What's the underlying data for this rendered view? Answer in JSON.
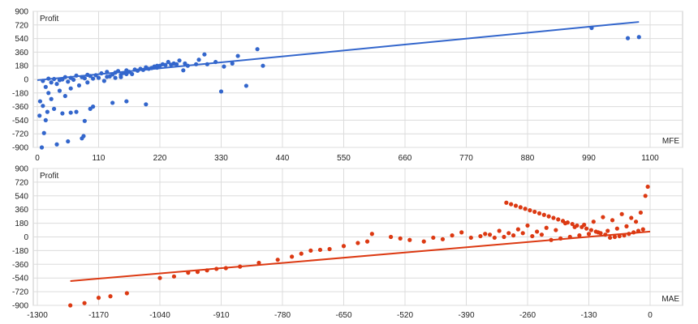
{
  "chart_data": [
    {
      "type": "scatter",
      "ylabel": "Profit",
      "xlabel": "MFE",
      "xlim": [
        0,
        1100
      ],
      "ylim": [
        -900,
        900
      ],
      "xticks": [
        0,
        110,
        220,
        330,
        440,
        550,
        660,
        770,
        880,
        990,
        1100
      ],
      "yticks": [
        900,
        720,
        540,
        360,
        180,
        0,
        -180,
        -360,
        -540,
        -720,
        -900
      ],
      "grid": true,
      "color": "#3366cc",
      "trendline": {
        "x": [
          0,
          1080
        ],
        "y": [
          -10,
          760
        ]
      },
      "points": [
        [
          995,
          680
        ],
        [
          1060,
          545
        ],
        [
          1080,
          560
        ],
        [
          405,
          180
        ],
        [
          395,
          400
        ],
        [
          375,
          -85
        ],
        [
          360,
          310
        ],
        [
          350,
          210
        ],
        [
          335,
          170
        ],
        [
          330,
          -160
        ],
        [
          320,
          230
        ],
        [
          305,
          200
        ],
        [
          300,
          330
        ],
        [
          290,
          260
        ],
        [
          285,
          200
        ],
        [
          270,
          180
        ],
        [
          262,
          120
        ],
        [
          255,
          250
        ],
        [
          245,
          210
        ],
        [
          235,
          230
        ],
        [
          225,
          200
        ],
        [
          215,
          180
        ],
        [
          205,
          150
        ],
        [
          195,
          -330
        ],
        [
          160,
          -290
        ],
        [
          135,
          -310
        ],
        [
          100,
          -360
        ],
        [
          95,
          -390
        ],
        [
          85,
          -550
        ],
        [
          83,
          -750
        ],
        [
          80,
          -780
        ],
        [
          70,
          -430
        ],
        [
          60,
          -440
        ],
        [
          55,
          -820
        ],
        [
          45,
          -450
        ],
        [
          35,
          -860
        ],
        [
          15,
          -540
        ],
        [
          12,
          -710
        ],
        [
          8,
          -900
        ],
        [
          4,
          -480
        ],
        [
          30,
          -390
        ],
        [
          18,
          -430
        ],
        [
          10,
          -350
        ],
        [
          5,
          -290
        ],
        [
          25,
          -260
        ],
        [
          50,
          -220
        ],
        [
          20,
          -180
        ],
        [
          40,
          -150
        ],
        [
          60,
          -120
        ],
        [
          15,
          -100
        ],
        [
          75,
          -80
        ],
        [
          35,
          -60
        ],
        [
          90,
          -40
        ],
        [
          55,
          -30
        ],
        [
          120,
          -20
        ],
        [
          110,
          20
        ],
        [
          130,
          40
        ],
        [
          150,
          60
        ],
        [
          170,
          70
        ],
        [
          140,
          90
        ],
        [
          100,
          10
        ],
        [
          80,
          30
        ],
        [
          60,
          20
        ],
        [
          40,
          -10
        ],
        [
          30,
          5
        ],
        [
          70,
          50
        ],
        [
          90,
          60
        ],
        [
          115,
          80
        ],
        [
          125,
          100
        ],
        [
          145,
          110
        ],
        [
          160,
          120
        ],
        [
          175,
          130
        ],
        [
          185,
          140
        ],
        [
          195,
          160
        ],
        [
          210,
          170
        ],
        [
          220,
          180
        ],
        [
          230,
          190
        ],
        [
          240,
          195
        ],
        [
          250,
          200
        ],
        [
          265,
          210
        ],
        [
          10,
          -20
        ],
        [
          20,
          10
        ],
        [
          25,
          -40
        ],
        [
          45,
          0
        ],
        [
          50,
          30
        ],
        [
          65,
          -5
        ],
        [
          85,
          15
        ],
        [
          95,
          45
        ],
        [
          105,
          55
        ],
        [
          125,
          35
        ],
        [
          135,
          65
        ],
        [
          155,
          85
        ],
        [
          165,
          100
        ],
        [
          180,
          115
        ],
        [
          190,
          125
        ],
        [
          200,
          140
        ],
        [
          215,
          155
        ],
        [
          160,
          70
        ],
        [
          150,
          30
        ],
        [
          140,
          20
        ]
      ]
    },
    {
      "type": "scatter",
      "ylabel": "Profit",
      "xlabel": "MAE",
      "xlim": [
        -1300,
        0
      ],
      "ylim": [
        -900,
        900
      ],
      "xticks": [
        -1300,
        -1170,
        -1040,
        -910,
        -780,
        -650,
        -520,
        -390,
        -260,
        -130,
        0
      ],
      "yticks": [
        900,
        720,
        540,
        360,
        180,
        0,
        -180,
        -360,
        -540,
        -720,
        -900
      ],
      "grid": true,
      "color": "#dc3912",
      "trendline": {
        "x": [
          -1230,
          0
        ],
        "y": [
          -580,
          70
        ]
      },
      "points": [
        [
          -1230,
          -900
        ],
        [
          -1200,
          -870
        ],
        [
          -1170,
          -800
        ],
        [
          -1145,
          -780
        ],
        [
          -1110,
          -740
        ],
        [
          -1040,
          -540
        ],
        [
          -1010,
          -520
        ],
        [
          -980,
          -470
        ],
        [
          -960,
          -460
        ],
        [
          -940,
          -440
        ],
        [
          -920,
          -420
        ],
        [
          -900,
          -410
        ],
        [
          -870,
          -390
        ],
        [
          -830,
          -340
        ],
        [
          -790,
          -300
        ],
        [
          -760,
          -260
        ],
        [
          -740,
          -220
        ],
        [
          -720,
          -180
        ],
        [
          -700,
          -170
        ],
        [
          -680,
          -160
        ],
        [
          -650,
          -120
        ],
        [
          -620,
          -80
        ],
        [
          -600,
          -60
        ],
        [
          -590,
          40
        ],
        [
          -550,
          0
        ],
        [
          -530,
          -20
        ],
        [
          -510,
          -40
        ],
        [
          -480,
          -60
        ],
        [
          -460,
          -10
        ],
        [
          -440,
          -30
        ],
        [
          -420,
          20
        ],
        [
          -400,
          60
        ],
        [
          -380,
          -10
        ],
        [
          -360,
          10
        ],
        [
          -340,
          30
        ],
        [
          -320,
          80
        ],
        [
          -300,
          50
        ],
        [
          -280,
          100
        ],
        [
          -260,
          150
        ],
        [
          -240,
          70
        ],
        [
          -220,
          120
        ],
        [
          -200,
          90
        ],
        [
          -180,
          180
        ],
        [
          -160,
          130
        ],
        [
          -140,
          160
        ],
        [
          -120,
          200
        ],
        [
          -100,
          260
        ],
        [
          -80,
          220
        ],
        [
          -60,
          300
        ],
        [
          -40,
          250
        ],
        [
          -20,
          320
        ],
        [
          -10,
          540
        ],
        [
          -5,
          660
        ],
        [
          -30,
          200
        ],
        [
          -50,
          140
        ],
        [
          -70,
          110
        ],
        [
          -90,
          80
        ],
        [
          -110,
          60
        ],
        [
          -130,
          40
        ],
        [
          -150,
          20
        ],
        [
          -170,
          0
        ],
        [
          -190,
          -20
        ],
        [
          -210,
          -40
        ],
        [
          -230,
          30
        ],
        [
          -250,
          10
        ],
        [
          -270,
          50
        ],
        [
          -290,
          20
        ],
        [
          -310,
          0
        ],
        [
          -330,
          -10
        ],
        [
          -350,
          40
        ],
        [
          -15,
          100
        ],
        [
          -25,
          80
        ],
        [
          -35,
          60
        ],
        [
          -45,
          40
        ],
        [
          -55,
          20
        ],
        [
          -65,
          10
        ],
        [
          -75,
          0
        ],
        [
          -85,
          -10
        ],
        [
          -95,
          30
        ],
        [
          -105,
          50
        ],
        [
          -115,
          70
        ],
        [
          -125,
          90
        ],
        [
          -135,
          110
        ],
        [
          -145,
          130
        ],
        [
          -155,
          150
        ],
        [
          -165,
          170
        ],
        [
          -175,
          190
        ],
        [
          -185,
          210
        ],
        [
          -195,
          230
        ],
        [
          -205,
          250
        ],
        [
          -215,
          270
        ],
        [
          -225,
          290
        ],
        [
          -235,
          310
        ],
        [
          -245,
          330
        ],
        [
          -255,
          350
        ],
        [
          -265,
          370
        ],
        [
          -275,
          390
        ],
        [
          -285,
          410
        ],
        [
          -295,
          430
        ],
        [
          -305,
          450
        ]
      ]
    }
  ]
}
